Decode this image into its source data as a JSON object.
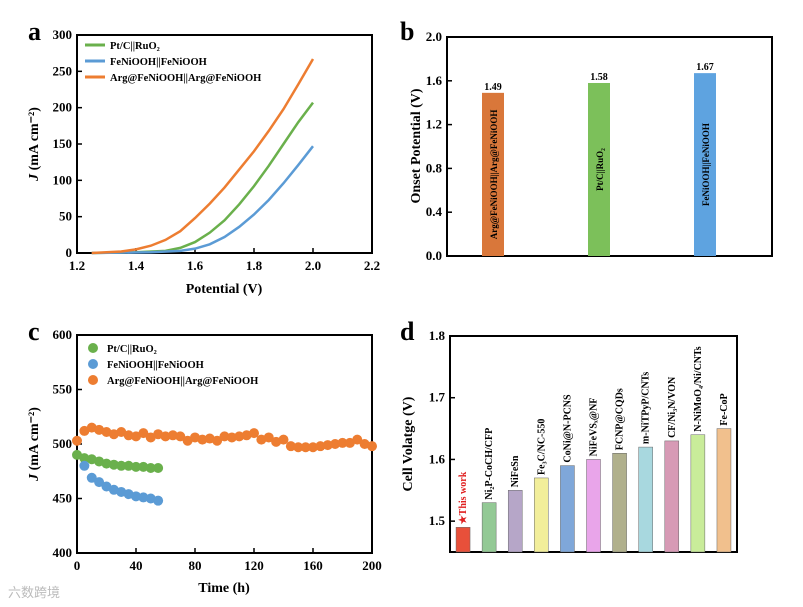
{
  "chart_data": [
    {
      "panel": "a",
      "type": "line",
      "xlabel": "Potential (V)",
      "ylabel": "J (mA cm⁻²)",
      "xlim": [
        1.2,
        2.2
      ],
      "ylim": [
        0,
        300
      ],
      "xticks": [
        1.2,
        1.4,
        1.6,
        1.8,
        2.0,
        2.2
      ],
      "yticks": [
        0,
        50,
        100,
        150,
        200,
        250,
        300
      ],
      "series": [
        {
          "name": "Pt/C||RuO₂",
          "color": "#6ab04c",
          "x": [
            1.25,
            1.4,
            1.5,
            1.55,
            1.6,
            1.65,
            1.7,
            1.75,
            1.8,
            1.85,
            1.9,
            1.95,
            2.0
          ],
          "y": [
            0,
            1,
            3,
            7,
            15,
            28,
            45,
            67,
            92,
            120,
            150,
            180,
            207
          ]
        },
        {
          "name": "FeNiOOH||FeNiOOH",
          "color": "#5b9bd5",
          "x": [
            1.25,
            1.45,
            1.55,
            1.6,
            1.65,
            1.7,
            1.75,
            1.8,
            1.85,
            1.9,
            1.95,
            2.0
          ],
          "y": [
            0,
            1,
            3,
            6,
            12,
            22,
            36,
            53,
            73,
            96,
            121,
            147
          ]
        },
        {
          "name": "Arg@FeNiOOH||Arg@FeNiOOH",
          "color": "#ed7d31",
          "x": [
            1.25,
            1.35,
            1.4,
            1.45,
            1.5,
            1.55,
            1.6,
            1.65,
            1.7,
            1.75,
            1.8,
            1.85,
            1.9,
            1.95,
            2.0
          ],
          "y": [
            0,
            2,
            5,
            10,
            18,
            30,
            48,
            68,
            90,
            115,
            140,
            168,
            198,
            232,
            267
          ]
        }
      ]
    },
    {
      "panel": "b",
      "type": "bar",
      "ylabel": "Onset Potential (V)",
      "ylim": [
        0,
        2.0
      ],
      "yticks": [
        "0.0",
        "0.4",
        "0.8",
        "1.2",
        "1.6",
        "2.0"
      ],
      "categories": [
        "Arg@FeNiOOH||Arg@FeNiOOH",
        "Pt/C||RuO₂",
        "FeNiOOH||FeNiOOH"
      ],
      "values": [
        1.49,
        1.58,
        1.67
      ],
      "labels": [
        "1.49",
        "1.58",
        "1.67"
      ],
      "colors": [
        "#d9773a",
        "#7cc05a",
        "#5ea3e0"
      ]
    },
    {
      "panel": "c",
      "type": "scatter",
      "xlabel": "Time (h)",
      "ylabel": "J (mA cm⁻²)",
      "xlim": [
        0,
        200
      ],
      "ylim": [
        400,
        600
      ],
      "xticks": [
        0,
        40,
        80,
        120,
        160,
        200
      ],
      "yticks": [
        400,
        450,
        500,
        550,
        600
      ],
      "series": [
        {
          "name": "Pt/C||RuO₂",
          "color": "#6ab04c",
          "x": [
            0,
            5,
            10,
            15,
            20,
            25,
            30,
            35,
            40,
            45,
            50,
            55
          ],
          "y": [
            490,
            487,
            486,
            484,
            482,
            481,
            480,
            480,
            479,
            479,
            478,
            478
          ]
        },
        {
          "name": "FeNiOOH||FeNiOOH",
          "color": "#5b9bd5",
          "x": [
            5,
            10,
            15,
            20,
            25,
            30,
            35,
            40,
            45,
            50,
            55
          ],
          "y": [
            480,
            469,
            465,
            461,
            458,
            456,
            454,
            452,
            451,
            450,
            448
          ]
        },
        {
          "name": "Arg@FeNiOOH||Arg@FeNiOOH",
          "color": "#ed7d31",
          "x": [
            0,
            5,
            10,
            15,
            20,
            25,
            30,
            35,
            40,
            45,
            50,
            55,
            60,
            65,
            70,
            75,
            80,
            85,
            90,
            95,
            100,
            105,
            110,
            115,
            120,
            125,
            130,
            135,
            140,
            145,
            150,
            155,
            160,
            165,
            170,
            175,
            180,
            185,
            190,
            195,
            200
          ],
          "y": [
            503,
            512,
            515,
            513,
            511,
            509,
            511,
            508,
            507,
            510,
            506,
            509,
            507,
            508,
            507,
            503,
            506,
            504,
            505,
            503,
            507,
            506,
            507,
            508,
            510,
            504,
            506,
            502,
            504,
            498,
            497,
            497,
            497,
            498,
            499,
            500,
            501,
            501,
            504,
            500,
            498
          ]
        }
      ]
    },
    {
      "panel": "d",
      "type": "bar",
      "ylabel": "Cell Volatge (V)",
      "ylim": [
        1.45,
        1.8
      ],
      "yticks": [
        "1.5",
        "1.6",
        "1.7",
        "1.8"
      ],
      "categories": [
        "★This work",
        "Ni₂P-CoCH/CFP",
        "NiFeSn",
        "Fe₃C/NC-550",
        "CoNi@N-PCNS",
        "NiFeVSₓ@NF",
        "FCNP@CQDs",
        "m-NiTPyP/CNTs",
        "CF/Ni₃N/VON",
        "N-NiMoO₄/Ni/CNTs",
        "Fe-CoP"
      ],
      "values": [
        1.49,
        1.53,
        1.55,
        1.57,
        1.59,
        1.6,
        1.61,
        1.62,
        1.63,
        1.64,
        1.65
      ],
      "colors": [
        "#e8503a",
        "#93c995",
        "#b6a6c8",
        "#f2ee9a",
        "#7fa7d9",
        "#e9a5ea",
        "#b0b08c",
        "#a8d8df",
        "#d79ab5",
        "#c9ec9a",
        "#f1c08d"
      ]
    }
  ],
  "panel_letters": [
    "a",
    "b",
    "c",
    "d"
  ],
  "watermark": "六数跨境"
}
